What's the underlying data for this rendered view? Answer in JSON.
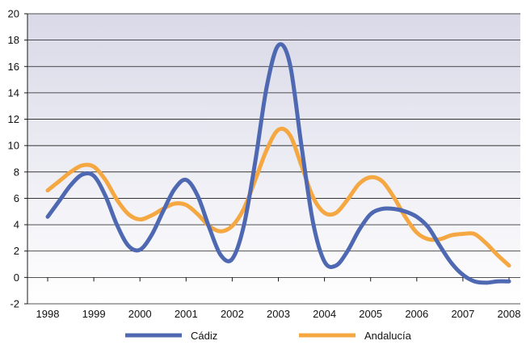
{
  "chart_data": {
    "type": "line",
    "x": [
      1998.0,
      1998.25,
      1998.5,
      1998.75,
      1999.0,
      1999.25,
      1999.5,
      1999.75,
      2000.0,
      2000.25,
      2000.5,
      2000.75,
      2001.0,
      2001.25,
      2001.5,
      2001.75,
      2002.0,
      2002.25,
      2002.5,
      2002.75,
      2003.0,
      2003.25,
      2003.5,
      2003.75,
      2004.0,
      2004.25,
      2004.5,
      2004.75,
      2005.0,
      2005.25,
      2005.5,
      2005.75,
      2006.0,
      2006.25,
      2006.5,
      2006.75,
      2007.0,
      2007.25,
      2007.5,
      2007.75,
      2008.0
    ],
    "series": [
      {
        "name": "Cádiz",
        "color": "#4f68b2",
        "values": [
          4.6,
          5.8,
          7.0,
          7.8,
          7.7,
          6.2,
          4.0,
          2.4,
          2.1,
          3.2,
          5.0,
          6.7,
          7.4,
          6.2,
          3.8,
          1.7,
          1.4,
          3.9,
          8.8,
          14.5,
          17.6,
          16.2,
          10.0,
          4.2,
          1.2,
          0.9,
          2.0,
          3.6,
          4.8,
          5.2,
          5.2,
          5.0,
          4.6,
          3.8,
          2.4,
          1.1,
          0.2,
          -0.3,
          -0.4,
          -0.3,
          -0.3
        ]
      },
      {
        "name": "Andalucía",
        "color": "#f5a742",
        "values": [
          6.6,
          7.3,
          8.0,
          8.5,
          8.4,
          7.4,
          5.9,
          4.8,
          4.4,
          4.7,
          5.2,
          5.6,
          5.5,
          4.8,
          3.9,
          3.5,
          3.9,
          5.2,
          7.4,
          9.7,
          11.2,
          10.8,
          8.5,
          6.1,
          4.9,
          4.9,
          5.9,
          7.1,
          7.6,
          7.3,
          6.1,
          4.6,
          3.4,
          2.9,
          2.9,
          3.2,
          3.3,
          3.3,
          2.6,
          1.7,
          0.9
        ]
      }
    ],
    "ylim": [
      -2,
      20
    ],
    "y_ticks": [
      -2,
      0,
      2,
      4,
      6,
      8,
      10,
      12,
      14,
      16,
      18,
      20
    ],
    "x_tick_labels": [
      "1998",
      "1999",
      "2000",
      "2001",
      "2002",
      "2003",
      "2004",
      "2005",
      "2006",
      "2007",
      "2008"
    ],
    "xlim": [
      1998,
      2008
    ],
    "grid": "horizontal",
    "legend_position": "bottom",
    "plot_background": [
      "#ffffff",
      "#d9d9e8"
    ],
    "title": "",
    "xlabel": "",
    "ylabel": ""
  }
}
